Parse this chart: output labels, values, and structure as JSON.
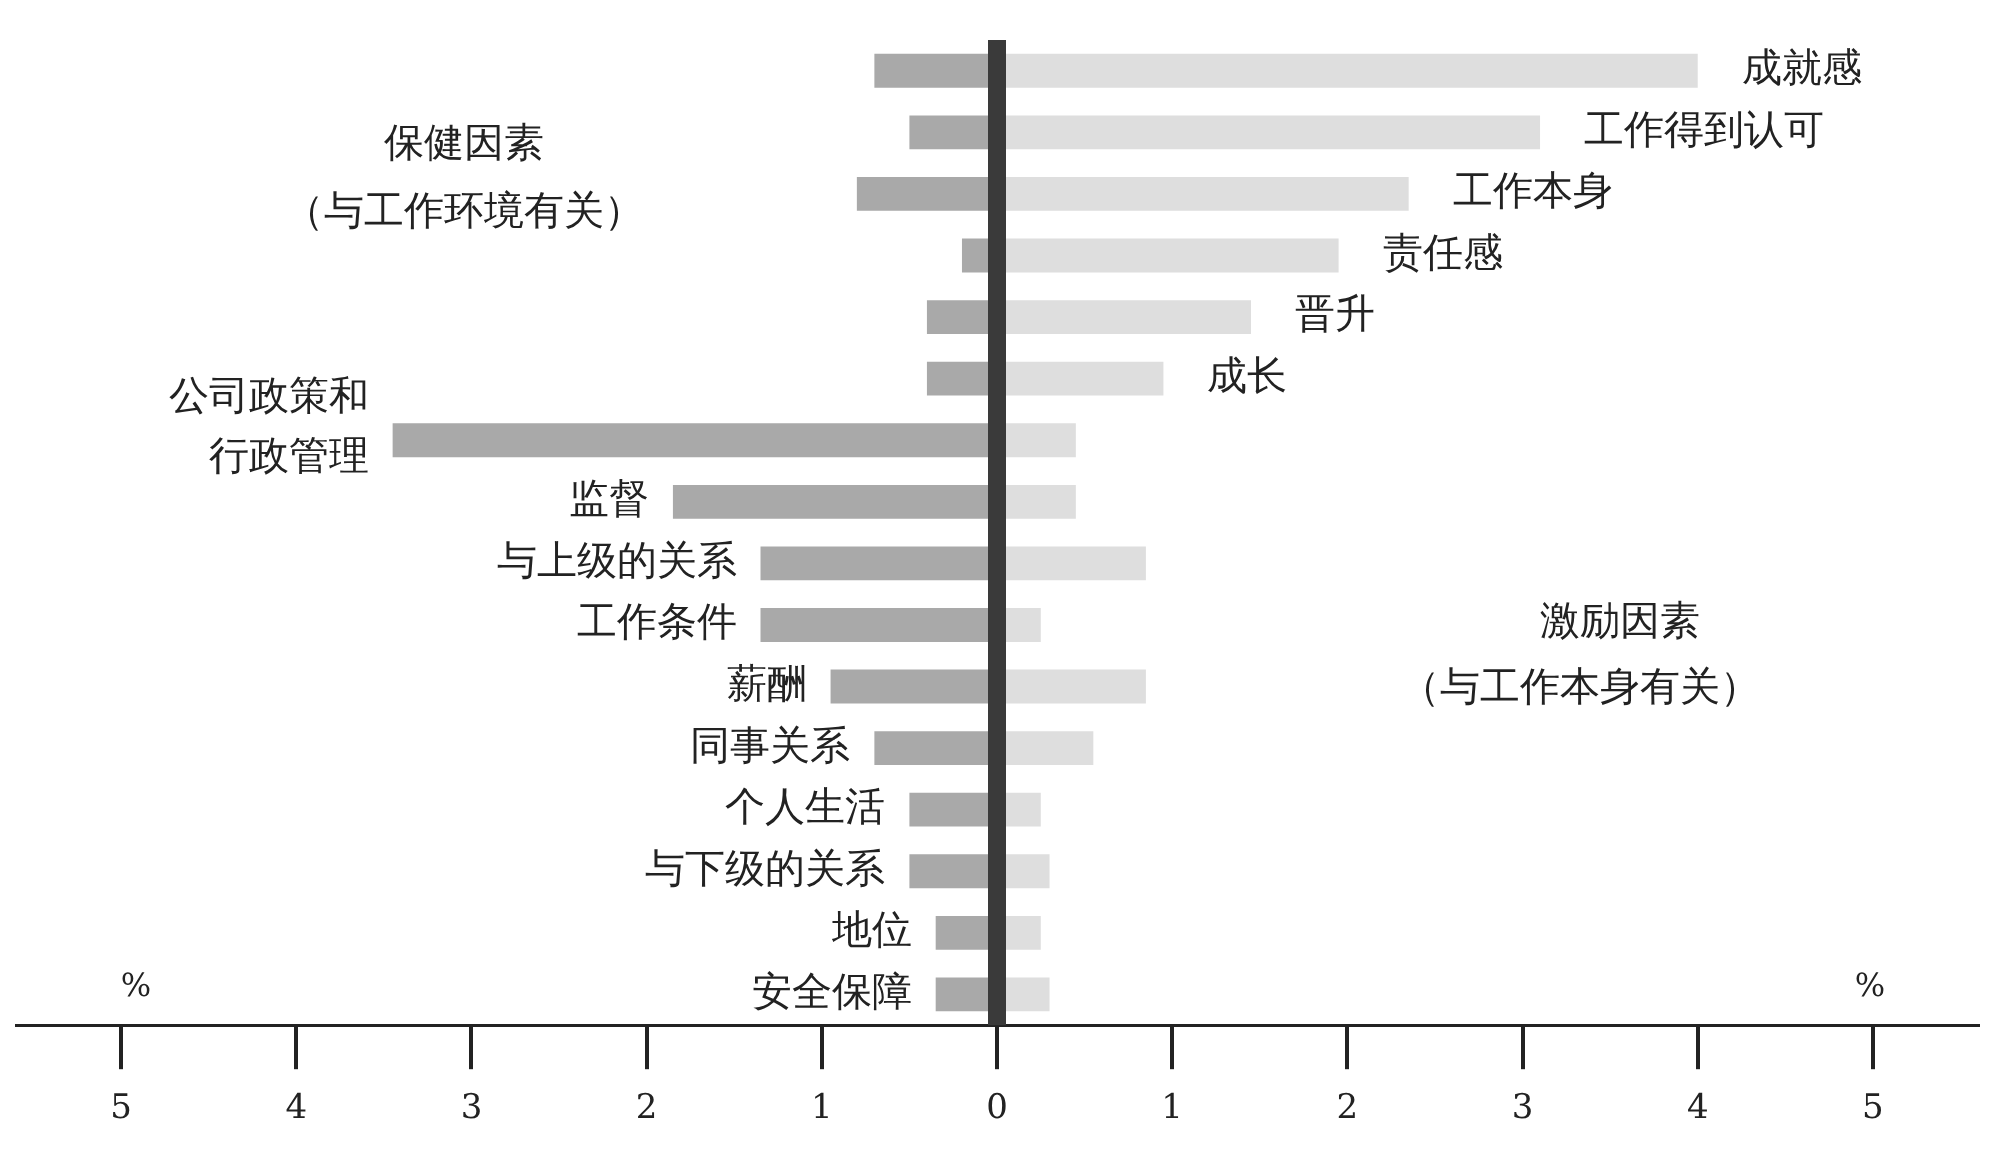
{
  "chart_data": {
    "type": "bar",
    "orientation": "horizontal",
    "stacked": true,
    "categories": [
      "成就感",
      "工作得到认可",
      "工作本身",
      "责任感",
      "晋升",
      "成长",
      "公司政策和行政管理",
      "监督",
      "与上级的关系",
      "工作条件",
      "薪酬",
      "同事关系",
      "个人生活",
      "与下级的关系",
      "地位",
      "安全保障"
    ],
    "series": [
      {
        "color": "#a9a9a9",
        "values": [
          -0.7,
          -0.5,
          -0.8,
          -0.2,
          -0.4,
          -0.4,
          -3.45,
          -1.85,
          -1.35,
          -1.35,
          -0.95,
          -0.7,
          -0.5,
          -0.5,
          -0.35,
          -0.35
        ]
      },
      {
        "color": "#dedede",
        "values": [
          4.0,
          3.1,
          2.35,
          1.95,
          1.45,
          0.95,
          0.45,
          0.45,
          0.85,
          0.25,
          0.85,
          0.55,
          0.25,
          0.3,
          0.25,
          0.3
        ]
      }
    ],
    "xlim": [
      -5.6,
      5.6
    ],
    "xticks": [
      {
        "value": -5,
        "label": "5"
      },
      {
        "value": -4,
        "label": "4"
      },
      {
        "value": -3,
        "label": "3"
      },
      {
        "value": -2,
        "label": "2"
      },
      {
        "value": -1,
        "label": "1"
      },
      0,
      1,
      2,
      3,
      4,
      5
    ],
    "ref_lines": [
      {
        "axis": "x",
        "value": 0,
        "color": "#3a3a3a"
      }
    ],
    "annotations": [
      "保健因素",
      "（与工作环境有关）",
      "激励因素",
      "（与工作本身有关）",
      "%",
      "%"
    ],
    "tick_labels": "x",
    "grid": false,
    "legend": false
  }
}
